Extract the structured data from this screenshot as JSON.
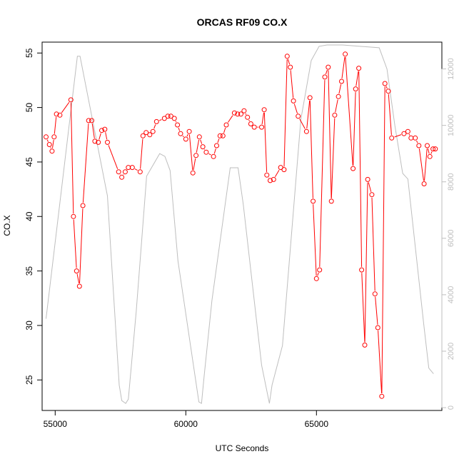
{
  "chart_data": {
    "type": "line",
    "title": "ORCAS RF09 CO.X",
    "xlabel": "UTC Seconds",
    "ylabel": "CO.X",
    "xlim": [
      54500,
      69800
    ],
    "ylim": [
      22.2,
      56.0
    ],
    "y2lim": [
      -100,
      12950
    ],
    "x_ticks": [
      55000,
      60000,
      65000
    ],
    "y_ticks": [
      25,
      30,
      35,
      40,
      45,
      50,
      55
    ],
    "y2_ticks": [
      0,
      2000,
      4000,
      6000,
      8000,
      10000,
      12000
    ],
    "colors": {
      "co": "#ff0000",
      "altitude": "#bebebe",
      "axis": "#000000"
    },
    "series": [
      {
        "role": "co",
        "style": "line+points",
        "x": [
          54650,
          54780,
          54880,
          54960,
          55050,
          55180,
          55600,
          55700,
          55820,
          55930,
          56060,
          56280,
          56400,
          56520,
          56650,
          56780,
          56900,
          57000,
          57430,
          57550,
          57680,
          57800,
          57950,
          58250,
          58360,
          58480,
          58620,
          58740,
          58880,
          59180,
          59310,
          59430,
          59560,
          59680,
          59800,
          60000,
          60130,
          60270,
          60390,
          60520,
          60650,
          60780,
          61060,
          61180,
          61310,
          61420,
          61550,
          61860,
          61980,
          62110,
          62230,
          62360,
          62490,
          62620,
          62900,
          63000,
          63100,
          63230,
          63360,
          63630,
          63760,
          63880,
          64000,
          64120,
          64300,
          64620,
          64750,
          64870,
          65000,
          65120,
          65320,
          65450,
          65570,
          65700,
          65840,
          65960,
          66100,
          66400,
          66500,
          66620,
          66730,
          66850,
          66960,
          67120,
          67240,
          67350,
          67500,
          67620,
          67750,
          67880,
          68350,
          68500,
          68620,
          68780,
          68920,
          69120,
          69240,
          69340,
          69460,
          69550
        ],
        "y": [
          47.3,
          46.6,
          46.0,
          47.3,
          49.4,
          49.3,
          50.7,
          40.0,
          35.0,
          33.6,
          41.0,
          48.8,
          48.8,
          46.9,
          46.8,
          47.9,
          48.0,
          46.8,
          44.1,
          43.6,
          44.1,
          44.5,
          44.5,
          44.1,
          47.4,
          47.7,
          47.5,
          47.8,
          48.7,
          49.0,
          49.2,
          49.2,
          49.0,
          48.4,
          47.6,
          47.1,
          47.8,
          44.0,
          45.6,
          47.3,
          46.4,
          45.9,
          45.5,
          46.5,
          47.4,
          47.4,
          48.4,
          49.5,
          49.4,
          49.4,
          49.7,
          49.1,
          48.5,
          48.2,
          48.2,
          49.8,
          43.8,
          43.3,
          43.4,
          44.5,
          44.3,
          54.7,
          53.7,
          50.6,
          49.2,
          47.8,
          50.9,
          41.4,
          34.3,
          35.1,
          52.8,
          53.7,
          41.4,
          49.3,
          51.0,
          52.4,
          54.9,
          44.4,
          51.7,
          53.6,
          35.1,
          28.2,
          43.4,
          42.0,
          32.9,
          29.8,
          23.5,
          52.2,
          51.5,
          47.2,
          47.6,
          47.8,
          47.2,
          47.2,
          46.5,
          43.0,
          46.5,
          45.5,
          46.2,
          46.2
        ]
      },
      {
        "role": "altitude",
        "style": "line",
        "x": [
          54650,
          55850,
          55950,
          57000,
          57450,
          57550,
          57700,
          57800,
          58100,
          58500,
          59000,
          59200,
          59400,
          59700,
          60500,
          60600,
          60700,
          61000,
          61700,
          62000,
          62200,
          62900,
          63200,
          63300,
          63700,
          64400,
          64800,
          65100,
          65400,
          65600,
          66000,
          67400,
          67700,
          68000,
          68300,
          68500,
          69100,
          69300,
          69480
        ],
        "y": [
          3150,
          12450,
          12450,
          7500,
          800,
          250,
          150,
          300,
          3400,
          8200,
          9000,
          8900,
          8400,
          5200,
          200,
          150,
          1100,
          3800,
          8500,
          8500,
          7200,
          1500,
          150,
          800,
          2200,
          10200,
          12300,
          12800,
          12850,
          12850,
          12850,
          12750,
          12000,
          10000,
          8300,
          8100,
          3000,
          1400,
          1200
        ]
      }
    ]
  }
}
